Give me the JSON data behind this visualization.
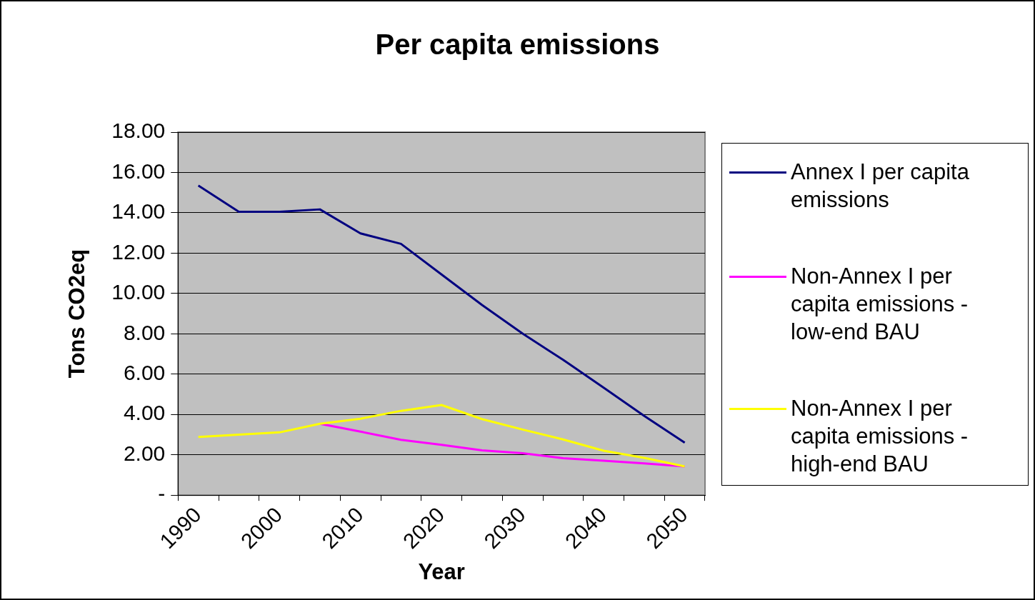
{
  "chart_data": {
    "type": "line",
    "title": "Per capita emissions",
    "xlabel": "Year",
    "ylabel": "Tons CO2eq",
    "categories": [
      "1990",
      null,
      "2000",
      null,
      "2010",
      null,
      "2020",
      null,
      "2030",
      null,
      "2040",
      null,
      "2050"
    ],
    "series": [
      {
        "name": "Annex I per capita emissions",
        "color": "#000080",
        "values": [
          15.35,
          14.05,
          14.05,
          14.17,
          12.98,
          12.46,
          10.94,
          9.43,
          8.01,
          6.71,
          5.33,
          3.93,
          2.6
        ]
      },
      {
        "name": "Non-Annex I per capita emissions - low-end BAU",
        "color": "#ff00ff",
        "values": [
          null,
          null,
          null,
          3.54,
          3.15,
          2.74,
          2.49,
          2.22,
          2.08,
          1.83,
          1.71,
          1.57,
          1.42
        ]
      },
      {
        "name": "Non-Annex I per capita emissions - high-end BAU",
        "color": "#ffff00",
        "values": [
          2.88,
          3.0,
          3.11,
          3.54,
          3.79,
          4.18,
          4.47,
          3.77,
          3.25,
          2.76,
          2.2,
          1.85,
          1.42
        ]
      }
    ],
    "ylim": [
      0,
      18
    ],
    "yticks": [
      {
        "value": 0,
        "label": "-"
      },
      {
        "value": 2,
        "label": "2.00"
      },
      {
        "value": 4,
        "label": "4.00"
      },
      {
        "value": 6,
        "label": "6.00"
      },
      {
        "value": 8,
        "label": "8.00"
      },
      {
        "value": 10,
        "label": "10.00"
      },
      {
        "value": 12,
        "label": "12.00"
      },
      {
        "value": 14,
        "label": "14.00"
      },
      {
        "value": 16,
        "label": "16.00"
      },
      {
        "value": 18,
        "label": "18.00"
      }
    ],
    "grid": "y",
    "legend": "right",
    "marker": "none",
    "line_style": "solid"
  }
}
